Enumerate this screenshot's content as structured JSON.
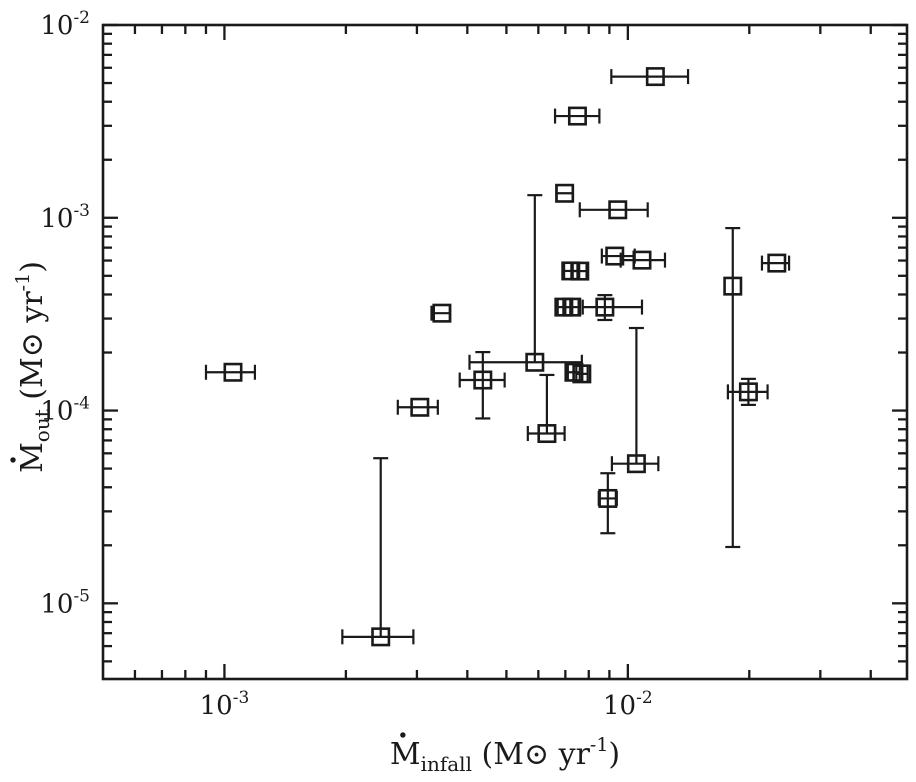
{
  "figure": {
    "background": "#ffffff",
    "ink_color": "#1a1a1a"
  },
  "chart_data": {
    "type": "scatter",
    "title": "",
    "grid": false,
    "legend": null,
    "marker": "open-square",
    "x_axis": {
      "scale": "log",
      "min": 0.0005,
      "max": 0.0492,
      "label": {
        "symbol": "M",
        "has_overdot": true,
        "subscript": "infall",
        "unit_pre": " (M⊙ yr",
        "unit_sup": "-1",
        "unit_post": ")"
      },
      "major_ticks": [
        {
          "value": 0.001,
          "base": "10",
          "exp": "-3"
        },
        {
          "value": 0.01,
          "base": "10",
          "exp": "-2"
        }
      ]
    },
    "y_axis": {
      "scale": "log",
      "min": 4.05e-06,
      "max": 0.01,
      "label": {
        "symbol": "M",
        "has_overdot": true,
        "subscript": "out",
        "unit_pre": " (M⊙ yr",
        "unit_sup": "-1",
        "unit_post": ")"
      },
      "major_ticks": [
        {
          "value": 0.01,
          "base": "10",
          "exp": "-2"
        },
        {
          "value": 0.001,
          "base": "10",
          "exp": "-3"
        },
        {
          "value": 0.0001,
          "base": "10",
          "exp": "-4"
        },
        {
          "value": 1e-05,
          "base": "10",
          "exp": "-5"
        }
      ]
    },
    "points": [
      {
        "x": 0.0117,
        "y": 0.0054,
        "xerr": [
          0.0091,
          0.0141
        ],
        "yerr": null
      },
      {
        "x": 0.0075,
        "y": 0.00337,
        "xerr": [
          0.0066,
          0.0085
        ],
        "yerr": null
      },
      {
        "x": 0.00697,
        "y": 0.00134,
        "xerr": [
          0.00666,
          0.00731
        ],
        "yerr": null
      },
      {
        "x": 0.00944,
        "y": 0.0011,
        "xerr": [
          0.0076,
          0.0112
        ],
        "yerr": null
      },
      {
        "x": 0.00928,
        "y": 0.000633,
        "xerr": [
          0.00862,
          0.0104
        ],
        "yerr": null
      },
      {
        "x": 0.01084,
        "y": 0.000603,
        "xerr": [
          0.0096,
          0.01236
        ],
        "yerr": null
      },
      {
        "x": 0.00722,
        "y": 0.00053,
        "xerr": [
          0.00695,
          0.0075
        ],
        "yerr": null
      },
      {
        "x": 0.0076,
        "y": 0.000529,
        "xerr": [
          0.0073,
          0.0079
        ],
        "yerr": null
      },
      {
        "x": 0.0234,
        "y": 0.000582,
        "xerr": [
          0.0215,
          0.0251
        ],
        "yerr": null
      },
      {
        "x": 0.0182,
        "y": 0.000442,
        "xerr": null,
        "yerr": [
          1.96e-05,
          0.000884
        ]
      },
      {
        "x": 0.00694,
        "y": 0.000344,
        "xerr": [
          0.0067,
          0.0072
        ],
        "yerr": null
      },
      {
        "x": 0.00726,
        "y": 0.000344,
        "xerr": [
          0.007,
          0.00755
        ],
        "yerr": null
      },
      {
        "x": 0.00877,
        "y": 0.000344,
        "xerr": [
          0.00773,
          0.01084
        ],
        "yerr": [
          0.000295,
          0.000397
        ]
      },
      {
        "x": 0.00346,
        "y": 0.00032,
        "xerr": [
          0.00326,
          0.00362
        ],
        "yerr": null
      },
      {
        "x": 0.00105,
        "y": 0.000158,
        "xerr": [
          0.0009,
          0.00119
        ],
        "yerr": null
      },
      {
        "x": 0.00437,
        "y": 0.000144,
        "xerr": [
          0.00383,
          0.00495
        ],
        "yerr": [
          9.1e-05,
          0.000201
        ]
      },
      {
        "x": 0.00588,
        "y": 0.000178,
        "xerr": [
          0.00405,
          0.00769
        ],
        "yerr": [
          0.000178,
          0.00131
        ]
      },
      {
        "x": 0.00735,
        "y": 0.000158,
        "xerr": [
          0.0071,
          0.0076
        ],
        "yerr": null
      },
      {
        "x": 0.00769,
        "y": 0.000155,
        "xerr": [
          0.00745,
          0.00795
        ],
        "yerr": null
      },
      {
        "x": 0.00305,
        "y": 0.000104,
        "xerr": [
          0.00269,
          0.00338
        ],
        "yerr": null
      },
      {
        "x": 0.0063,
        "y": 7.6e-05,
        "xerr": [
          0.00565,
          0.00697
        ],
        "yerr": [
          7.6e-05,
          0.000153
        ]
      },
      {
        "x": 0.0199,
        "y": 0.000125,
        "xerr": [
          0.0177,
          0.0222
        ],
        "yerr": [
          0.000107,
          0.000146
        ]
      },
      {
        "x": 0.0105,
        "y": 5.3e-05,
        "xerr": [
          0.00913,
          0.0119
        ],
        "yerr": [
          5.3e-05,
          0.000268
        ]
      },
      {
        "x": 0.00892,
        "y": 3.5e-05,
        "xerr": [
          0.00847,
          0.00939
        ],
        "yerr": [
          2.31e-05,
          4.73e-05
        ]
      },
      {
        "x": 0.00244,
        "y": 6.7e-06,
        "xerr": [
          0.00196,
          0.00294
        ],
        "yerr": [
          6.7e-06,
          5.66e-05
        ]
      }
    ]
  }
}
